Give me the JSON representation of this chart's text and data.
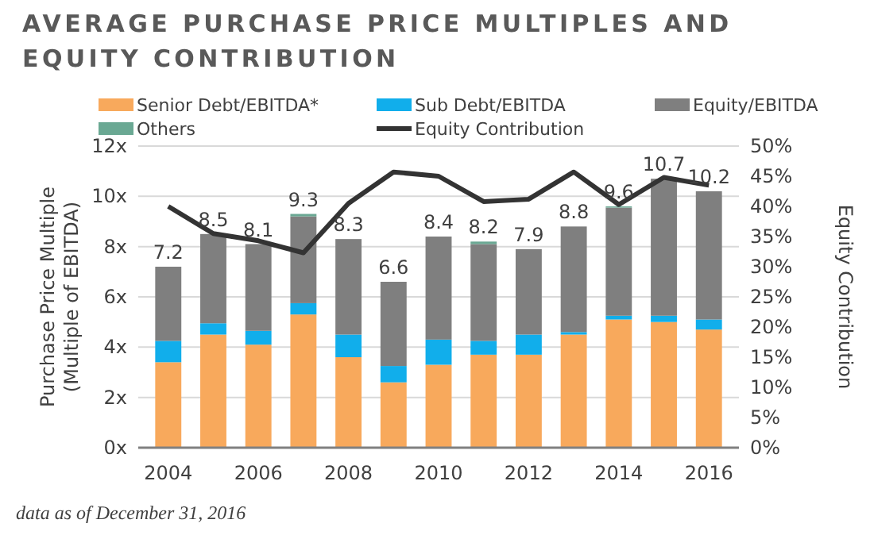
{
  "chart_data": {
    "type": "bar",
    "title": "AVERAGE PURCHASE PRICE MULTIPLES AND EQUITY CONTRIBUTION",
    "ylabel": "Purchase Price Multiple (Multiple of EBITDA)",
    "y2label": "Equity Contribution",
    "annotations": [
      "data as of December 31, 2016"
    ],
    "categories": [
      "2004",
      null,
      "2006",
      null,
      "2008",
      null,
      "2010",
      null,
      "2012",
      null,
      "2014",
      null,
      "2016"
    ],
    "stacked": true,
    "legend": "top",
    "grid": "y",
    "series": [
      {
        "name": "Senior Debt/EBITDA*",
        "color": "#f8a95c",
        "values": [
          3.4,
          4.5,
          4.1,
          5.3,
          3.6,
          2.6,
          3.3,
          3.7,
          3.7,
          4.5,
          5.1,
          5.0,
          4.7
        ]
      },
      {
        "name": "Sub Debt/EBITDA",
        "color": "#11aeeb",
        "values": [
          0.85,
          0.45,
          0.55,
          0.45,
          0.9,
          0.65,
          1.0,
          0.55,
          0.8,
          0.1,
          0.15,
          0.25,
          0.4
        ]
      },
      {
        "name": "Equity/EBITDA",
        "color": "#7f7f7f",
        "values": [
          2.95,
          3.55,
          3.45,
          3.45,
          3.8,
          3.35,
          4.1,
          3.85,
          3.4,
          4.2,
          4.3,
          5.45,
          5.1
        ]
      },
      {
        "name": "Others",
        "color": "#6aa893",
        "values": [
          0,
          0,
          0,
          0.1,
          0,
          0,
          0,
          0.1,
          0,
          0,
          0.05,
          0,
          0
        ]
      },
      {
        "name": "Equity Contribution",
        "type": "line",
        "axis": "y2",
        "color": "#333333",
        "values": [
          40,
          35.5,
          34.3,
          32.3,
          40.5,
          45.7,
          45,
          40.8,
          41.2,
          45.7,
          40.3,
          44.8,
          43.5
        ]
      }
    ],
    "totals": [
      "7.2",
      "8.5",
      "8.1",
      "9.3",
      "8.3",
      "6.6",
      "8.4",
      "8.2",
      "7.9",
      "8.8",
      "9.6",
      "10.7",
      "10.2"
    ],
    "ylim": [
      0,
      12
    ],
    "yticks": [
      {
        "value": 0,
        "label": "0x"
      },
      {
        "value": 2,
        "label": "2x"
      },
      {
        "value": 4,
        "label": "4x"
      },
      {
        "value": 6,
        "label": "6x"
      },
      {
        "value": 8,
        "label": "8x"
      },
      {
        "value": 10,
        "label": "10x"
      },
      {
        "value": 12,
        "label": "12x"
      }
    ],
    "y2lim": [
      0,
      50
    ],
    "y2ticks": [
      {
        "value": 0,
        "label": "0%"
      },
      {
        "value": 5,
        "label": "5%"
      },
      {
        "value": 10,
        "label": "10%"
      },
      {
        "value": 15,
        "label": "15%"
      },
      {
        "value": 20,
        "label": "20%"
      },
      {
        "value": 25,
        "label": "25%"
      },
      {
        "value": 30,
        "label": "30%"
      },
      {
        "value": 35,
        "label": "35%"
      },
      {
        "value": 40,
        "label": "40%"
      },
      {
        "value": 45,
        "label": "45%"
      },
      {
        "value": 50,
        "label": "50%"
      }
    ]
  }
}
